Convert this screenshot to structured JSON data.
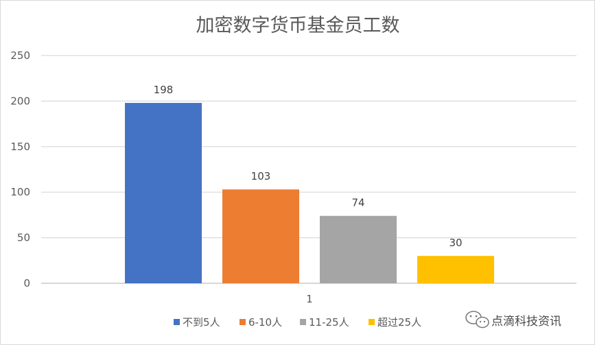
{
  "chart_data": {
    "type": "bar",
    "title": "加密数字货币基金员工数",
    "categories": [
      "1"
    ],
    "series": [
      {
        "name": "不到5人",
        "values": [
          198
        ],
        "color": "#4472C4"
      },
      {
        "name": "6-10人",
        "values": [
          103
        ],
        "color": "#ED7D31"
      },
      {
        "name": "11-25人",
        "values": [
          74
        ],
        "color": "#A5A5A5"
      },
      {
        "name": "超过25人",
        "values": [
          30
        ],
        "color": "#FFC000"
      }
    ],
    "yticks": [
      0,
      50,
      100,
      150,
      200,
      250
    ],
    "ylim": [
      0,
      250
    ],
    "grid": true,
    "legend": "bottom",
    "xlabel": "",
    "ylabel": ""
  },
  "watermark": {
    "text": "点滴科技资讯",
    "icon": "wechat-icon"
  }
}
